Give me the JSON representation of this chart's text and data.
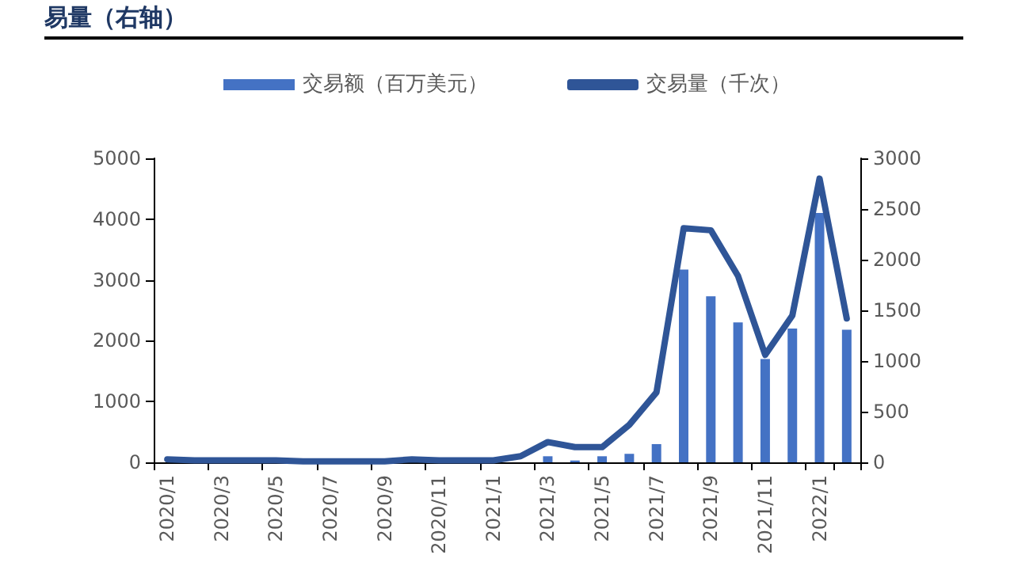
{
  "chart_data": {
    "type": "bar",
    "title": "易量（右轴）",
    "categories": [
      "2020/1",
      null,
      "2020/3",
      null,
      "2020/5",
      null,
      "2020/7",
      null,
      "2020/9",
      null,
      "2020/11",
      null,
      "2021/1",
      null,
      "2021/3",
      null,
      "2021/5",
      null,
      "2021/7",
      null,
      "2021/9",
      null,
      "2021/11",
      null,
      "2022/1",
      null
    ],
    "series": [
      {
        "name": "交易额（百万美元）",
        "color": "#4472c4",
        "values": [
          0,
          0,
          0,
          0,
          0,
          0,
          0,
          0,
          0,
          0,
          0,
          0,
          0,
          0,
          100,
          30,
          100,
          140,
          300,
          3170,
          2730,
          2300,
          1700,
          2200,
          4100,
          2180
        ]
      },
      {
        "name": "交易量（千次）",
        "type": "line",
        "axis": "y2",
        "color": "#2f5597",
        "values": [
          30,
          20,
          20,
          20,
          20,
          10,
          10,
          10,
          10,
          30,
          20,
          20,
          20,
          60,
          200,
          150,
          150,
          370,
          690,
          2310,
          2290,
          1840,
          1060,
          1450,
          2800,
          1420
        ]
      }
    ],
    "ylim": [
      0,
      5000
    ],
    "yticks": [
      0,
      1000,
      2000,
      3000,
      4000,
      5000
    ],
    "y2lim": [
      0,
      3000
    ],
    "y2ticks": [
      0,
      500,
      1000,
      1500,
      2000,
      2500,
      3000
    ],
    "grid": false,
    "legend": "top",
    "marker": "none"
  }
}
